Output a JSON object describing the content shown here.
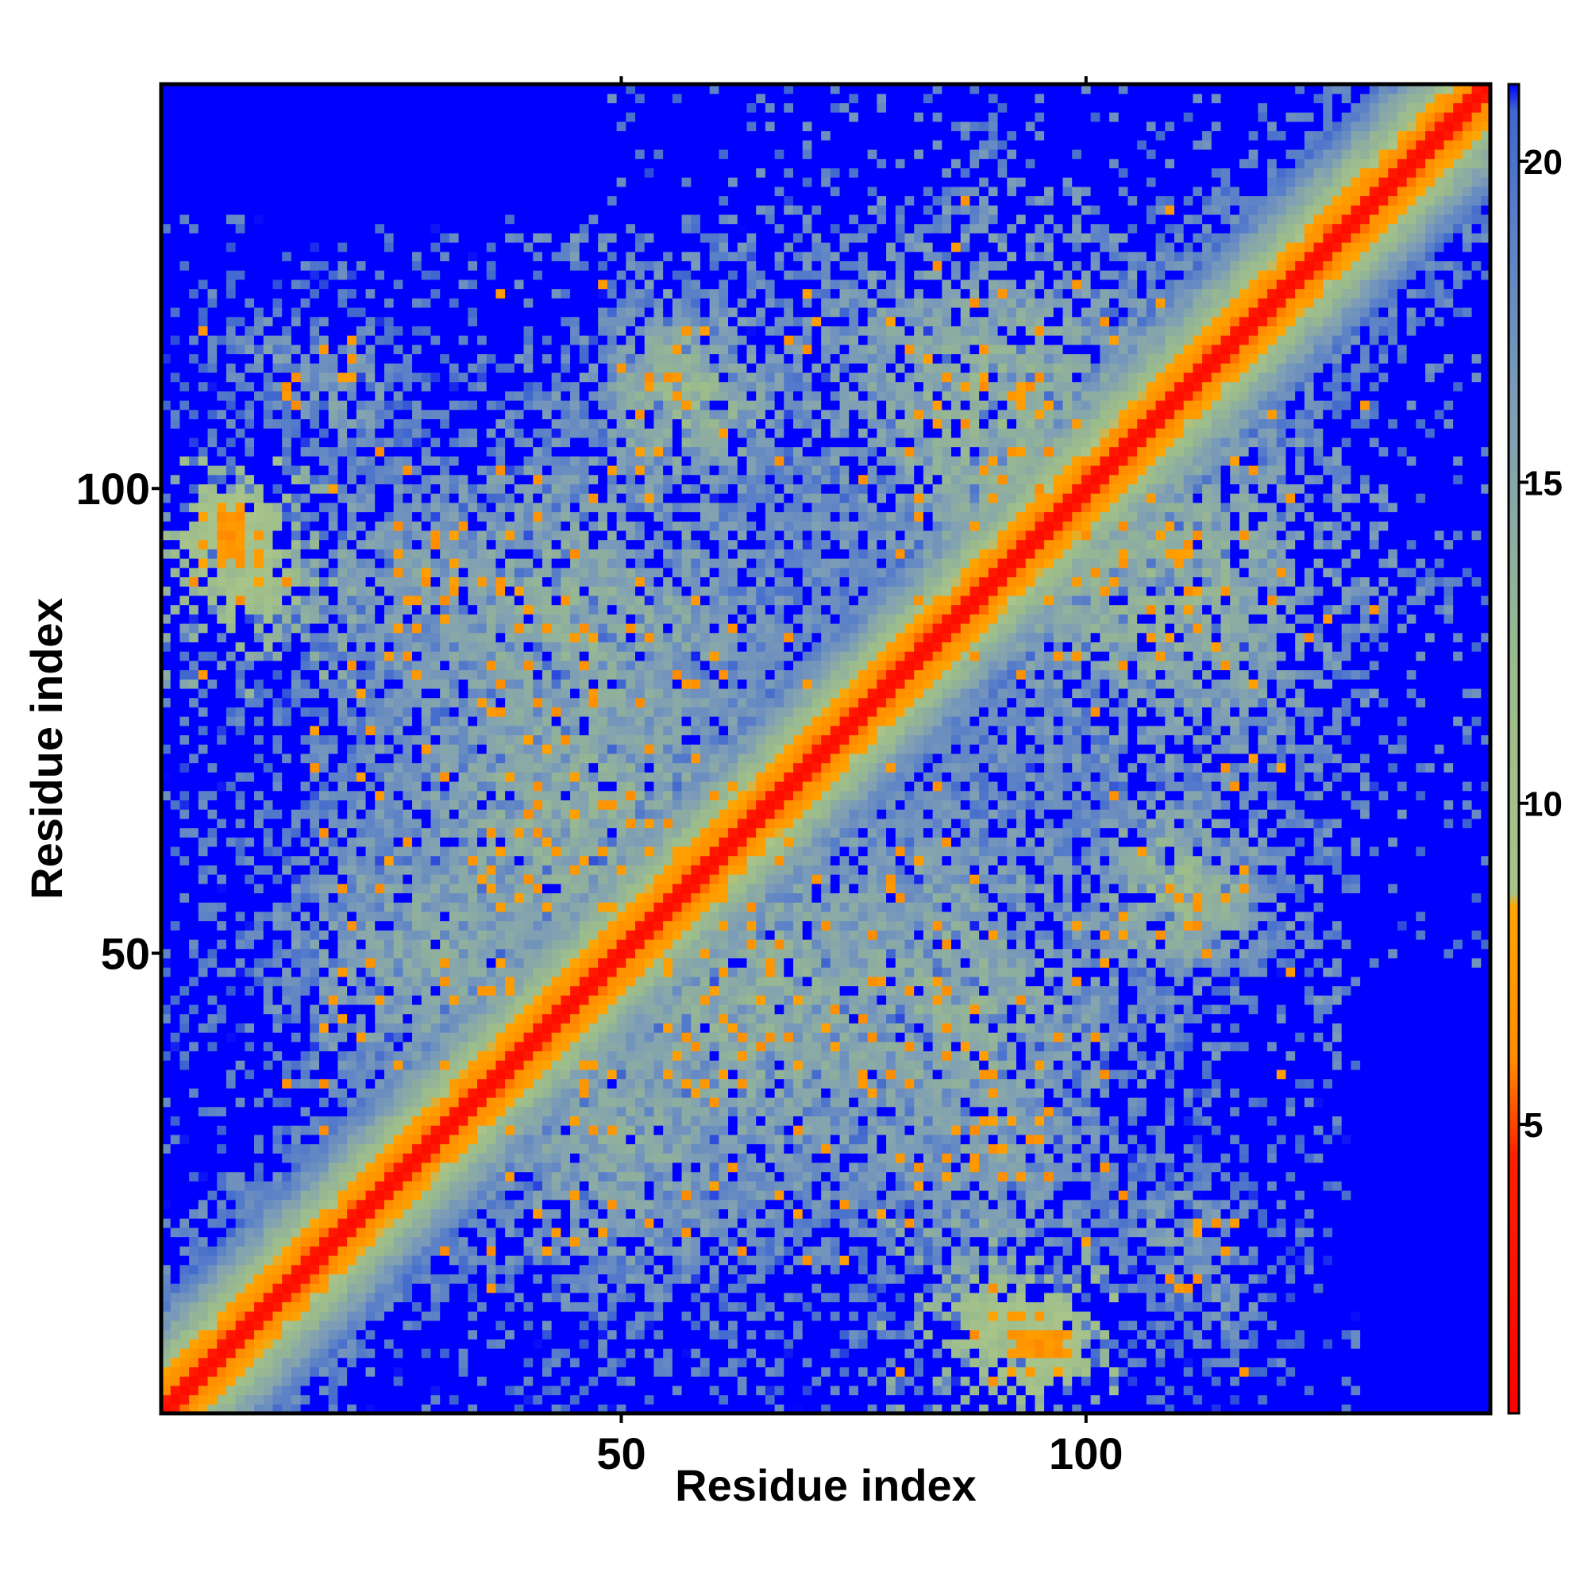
{
  "chart_data": {
    "type": "heatmap",
    "title": "",
    "xlabel": "Residue index",
    "ylabel": "Residue index",
    "n_residues": 143,
    "xlim": [
      1,
      143
    ],
    "ylim": [
      1,
      143
    ],
    "x_ticks": [
      50,
      100
    ],
    "y_ticks": [
      50,
      100
    ],
    "colorbar": {
      "ticks": [
        5,
        10,
        15,
        20
      ],
      "range": [
        0.5,
        21.2
      ],
      "stops": [
        {
          "value": 0.5,
          "color": "#ff0000"
        },
        {
          "value": 4.5,
          "color": "#ff2000"
        },
        {
          "value": 6.0,
          "color": "#ff8c00"
        },
        {
          "value": 8.4,
          "color": "#ffa500"
        },
        {
          "value": 8.6,
          "color": "#a8c48a"
        },
        {
          "value": 12.0,
          "color": "#9cbc8c"
        },
        {
          "value": 16.0,
          "color": "#7f9fb5"
        },
        {
          "value": 19.0,
          "color": "#5a80c8"
        },
        {
          "value": 20.8,
          "color": "#3f66cf"
        },
        {
          "value": 21.2,
          "color": "#0000ff"
        }
      ]
    },
    "background_value": 21.2,
    "contact_blocks": [
      {
        "center": [
          55,
          112
        ],
        "sigma": 5,
        "value": 15.0,
        "density": 0.55
      },
      {
        "center": [
          112,
          55
        ],
        "sigma": 5,
        "value": 15.0,
        "density": 0.55
      },
      {
        "center": [
          8,
          95
        ],
        "sigma": 3,
        "value": 7.0,
        "density": 0.8
      },
      {
        "center": [
          95,
          8
        ],
        "sigma": 3,
        "value": 7.0,
        "density": 0.8
      },
      {
        "center": [
          90,
          10
        ],
        "sigma": 4,
        "value": 10.0,
        "density": 0.6
      },
      {
        "center": [
          10,
          90
        ],
        "sigma": 4,
        "value": 10.0,
        "density": 0.6
      },
      {
        "center": [
          110,
          57
        ],
        "sigma": 6,
        "value": 13.0,
        "density": 0.6
      },
      {
        "center": [
          57,
          110
        ],
        "sigma": 6,
        "value": 13.0,
        "density": 0.6
      },
      {
        "center": [
          90,
          108
        ],
        "sigma": 14,
        "value": 14.0,
        "density": 0.55
      },
      {
        "center": [
          108,
          90
        ],
        "sigma": 14,
        "value": 14.0,
        "density": 0.55
      },
      {
        "center": [
          45,
          85
        ],
        "sigma": 15,
        "value": 14.5,
        "density": 0.45
      },
      {
        "center": [
          85,
          45
        ],
        "sigma": 15,
        "value": 14.5,
        "density": 0.45
      },
      {
        "center": [
          65,
          45
        ],
        "sigma": 16,
        "value": 14.5,
        "density": 0.5
      },
      {
        "center": [
          45,
          65
        ],
        "sigma": 16,
        "value": 14.5,
        "density": 0.5
      },
      {
        "center": [
          30,
          50
        ],
        "sigma": 12,
        "value": 15.0,
        "density": 0.5
      },
      {
        "center": [
          50,
          30
        ],
        "sigma": 12,
        "value": 15.0,
        "density": 0.5
      },
      {
        "center": [
          90,
          28
        ],
        "sigma": 8,
        "value": 15.5,
        "density": 0.45
      },
      {
        "center": [
          28,
          90
        ],
        "sigma": 8,
        "value": 15.5,
        "density": 0.45
      },
      {
        "center": [
          20,
          110
        ],
        "sigma": 6,
        "value": 16.5,
        "density": 0.35
      },
      {
        "center": [
          110,
          20
        ],
        "sigma": 6,
        "value": 16.5,
        "density": 0.35
      },
      {
        "center": [
          115,
          12
        ],
        "sigma": 5,
        "value": 17.0,
        "density": 0.35
      },
      {
        "center": [
          12,
          115
        ],
        "sigma": 5,
        "value": 17.0,
        "density": 0.35
      }
    ],
    "random_seed": 7
  }
}
